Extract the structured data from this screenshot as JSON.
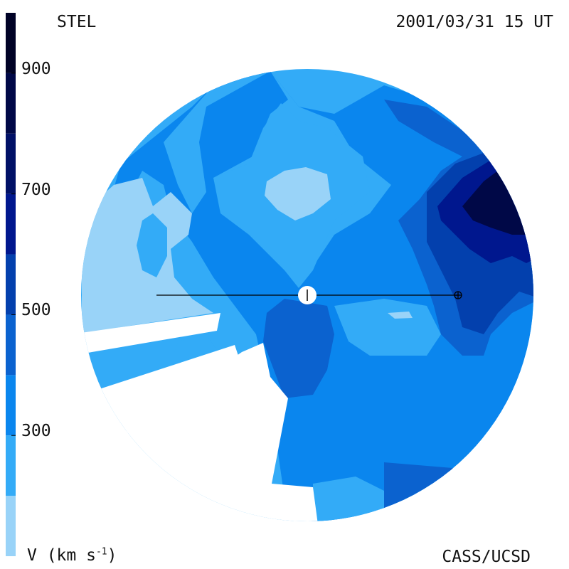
{
  "header": {
    "source": "STEL",
    "date": "2001/03/31 15 UT"
  },
  "footer": {
    "unit_main": "V (km s",
    "unit_sup": "-1",
    "unit_close": ")",
    "credit": "CASS/UCSD"
  },
  "colorbar": {
    "ticks": [
      {
        "value": 900,
        "label": "900"
      },
      {
        "value": 700,
        "label": "700"
      },
      {
        "value": 500,
        "label": "500"
      },
      {
        "value": 300,
        "label": "300"
      }
    ],
    "levels": [
      {
        "min": 100,
        "max": 200,
        "color": "#99d3f8"
      },
      {
        "min": 200,
        "max": 300,
        "color": "#33abf7"
      },
      {
        "min": 300,
        "max": 400,
        "color": "#0a86ee"
      },
      {
        "min": 400,
        "max": 500,
        "color": "#0b62cf"
      },
      {
        "min": 500,
        "max": 600,
        "color": "#0340ad"
      },
      {
        "min": 600,
        "max": 700,
        "color": "#00178e"
      },
      {
        "min": 700,
        "max": 800,
        "color": "#001066"
      },
      {
        "min": 800,
        "max": 900,
        "color": "#000847"
      },
      {
        "min": 900,
        "max": 1000,
        "color": "#000226"
      }
    ],
    "range": [
      100,
      1000
    ]
  },
  "map": {
    "quantity": "solar wind velocity",
    "sun_symbol": "sun",
    "earth_symbol": "earth"
  }
}
